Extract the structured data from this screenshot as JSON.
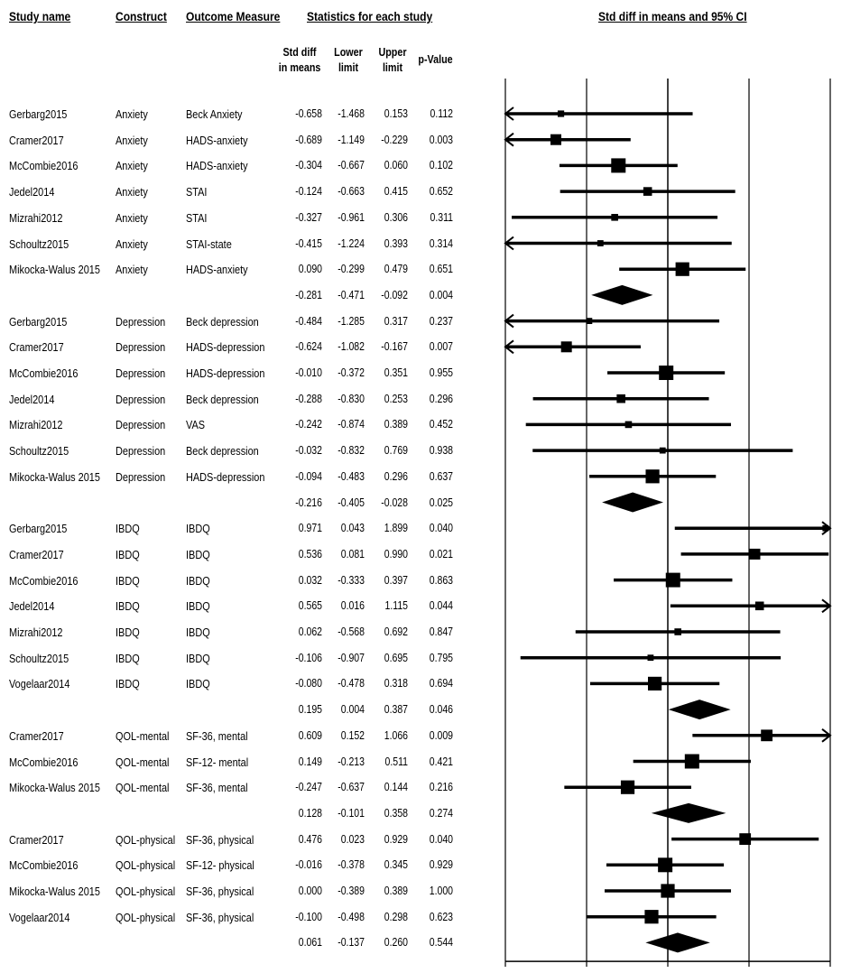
{
  "headers": {
    "study": "Study name",
    "construct": "Construct",
    "outcome": "Outcome Measure",
    "stats": "Statistics for each study",
    "plot": "Std diff in means and 95% CI",
    "std_diff": [
      "Std diff",
      "in means"
    ],
    "lower": [
      "Lower",
      "limit"
    ],
    "upper": [
      "Upper",
      "limit"
    ],
    "pvalue": "p-Value"
  },
  "rows": [
    {
      "study": "Gerbarg2015",
      "construct": "Anxiety",
      "outcome": "Beck Anxiety",
      "smd": "-0.658",
      "lower": "-1.468",
      "upper": "0.153",
      "p": "0.112"
    },
    {
      "study": "Cramer2017",
      "construct": "Anxiety",
      "outcome": "HADS-anxiety",
      "smd": "-0.689",
      "lower": "-1.149",
      "upper": "-0.229",
      "p": "0.003"
    },
    {
      "study": "McCombie2016",
      "construct": "Anxiety",
      "outcome": "HADS-anxiety",
      "smd": "-0.304",
      "lower": "-0.667",
      "upper": "0.060",
      "p": "0.102"
    },
    {
      "study": "Jedel2014",
      "construct": "Anxiety",
      "outcome": "STAI",
      "smd": "-0.124",
      "lower": "-0.663",
      "upper": "0.415",
      "p": "0.652"
    },
    {
      "study": "Mizrahi2012",
      "construct": "Anxiety",
      "outcome": "STAI",
      "smd": "-0.327",
      "lower": "-0.961",
      "upper": "0.306",
      "p": "0.311"
    },
    {
      "study": "Schoultz2015",
      "construct": "Anxiety",
      "outcome": "STAI-state",
      "smd": "-0.415",
      "lower": "-1.224",
      "upper": "0.393",
      "p": "0.314"
    },
    {
      "study": "Mikocka-Walus 2015",
      "construct": "Anxiety",
      "outcome": "HADS-anxiety",
      "smd": "0.090",
      "lower": "-0.299",
      "upper": "0.479",
      "p": "0.651"
    },
    {
      "study": "",
      "construct": "",
      "outcome": "",
      "smd": "-0.281",
      "lower": "-0.471",
      "upper": "-0.092",
      "p": "0.004",
      "summary": true
    },
    {
      "study": "Gerbarg2015",
      "construct": "Depression",
      "outcome": "Beck depression",
      "smd": "-0.484",
      "lower": "-1.285",
      "upper": "0.317",
      "p": "0.237"
    },
    {
      "study": "Cramer2017",
      "construct": "Depression",
      "outcome": "HADS-depression",
      "smd": "-0.624",
      "lower": "-1.082",
      "upper": "-0.167",
      "p": "0.007"
    },
    {
      "study": "McCombie2016",
      "construct": "Depression",
      "outcome": "HADS-depression",
      "smd": "-0.010",
      "lower": "-0.372",
      "upper": "0.351",
      "p": "0.955"
    },
    {
      "study": "Jedel2014",
      "construct": "Depression",
      "outcome": "Beck depression",
      "smd": "-0.288",
      "lower": "-0.830",
      "upper": "0.253",
      "p": "0.296"
    },
    {
      "study": "Mizrahi2012",
      "construct": "Depression",
      "outcome": "VAS",
      "smd": "-0.242",
      "lower": "-0.874",
      "upper": "0.389",
      "p": "0.452"
    },
    {
      "study": "Schoultz2015",
      "construct": "Depression",
      "outcome": "Beck depression",
      "smd": "-0.032",
      "lower": "-0.832",
      "upper": "0.769",
      "p": "0.938"
    },
    {
      "study": "Mikocka-Walus 2015",
      "construct": "Depression",
      "outcome": "HADS-depression",
      "smd": "-0.094",
      "lower": "-0.483",
      "upper": "0.296",
      "p": "0.637"
    },
    {
      "study": "",
      "construct": "",
      "outcome": "",
      "smd": "-0.216",
      "lower": "-0.405",
      "upper": "-0.028",
      "p": "0.025",
      "summary": true
    },
    {
      "study": "Gerbarg2015",
      "construct": "IBDQ",
      "outcome": "IBDQ",
      "smd": "0.971",
      "lower": "0.043",
      "upper": "1.899",
      "p": "0.040"
    },
    {
      "study": "Cramer2017",
      "construct": "IBDQ",
      "outcome": "IBDQ",
      "smd": "0.536",
      "lower": "0.081",
      "upper": "0.990",
      "p": "0.021"
    },
    {
      "study": "McCombie2016",
      "construct": "IBDQ",
      "outcome": "IBDQ",
      "smd": "0.032",
      "lower": "-0.333",
      "upper": "0.397",
      "p": "0.863"
    },
    {
      "study": "Jedel2014",
      "construct": "IBDQ",
      "outcome": "IBDQ",
      "smd": "0.565",
      "lower": "0.016",
      "upper": "1.115",
      "p": "0.044"
    },
    {
      "study": "Mizrahi2012",
      "construct": "IBDQ",
      "outcome": "IBDQ",
      "smd": "0.062",
      "lower": "-0.568",
      "upper": "0.692",
      "p": "0.847"
    },
    {
      "study": "Schoultz2015",
      "construct": "IBDQ",
      "outcome": "IBDQ",
      "smd": "-0.106",
      "lower": "-0.907",
      "upper": "0.695",
      "p": "0.795"
    },
    {
      "study": "Vogelaar2014",
      "construct": "IBDQ",
      "outcome": "IBDQ",
      "smd": "-0.080",
      "lower": "-0.478",
      "upper": "0.318",
      "p": "0.694"
    },
    {
      "study": "",
      "construct": "",
      "outcome": "",
      "smd": "0.195",
      "lower": "0.004",
      "upper": "0.387",
      "p": "0.046",
      "summary": true
    },
    {
      "study": "Cramer2017",
      "construct": "QOL-mental",
      "outcome": "SF-36, mental",
      "smd": "0.609",
      "lower": "0.152",
      "upper": "1.066",
      "p": "0.009"
    },
    {
      "study": "McCombie2016",
      "construct": "QOL-mental",
      "outcome": "SF-12- mental",
      "smd": "0.149",
      "lower": "-0.213",
      "upper": "0.511",
      "p": "0.421"
    },
    {
      "study": "Mikocka-Walus 2015",
      "construct": "QOL-mental",
      "outcome": "SF-36, mental",
      "smd": "-0.247",
      "lower": "-0.637",
      "upper": "0.144",
      "p": "0.216"
    },
    {
      "study": "",
      "construct": "",
      "outcome": "",
      "smd": "0.128",
      "lower": "-0.101",
      "upper": "0.358",
      "p": "0.274",
      "summary": true
    },
    {
      "study": "Cramer2017",
      "construct": "QOL-physical",
      "outcome": "SF-36, physical",
      "smd": "0.476",
      "lower": "0.023",
      "upper": "0.929",
      "p": "0.040"
    },
    {
      "study": "McCombie2016",
      "construct": "QOL-physical",
      "outcome": "SF-12- physical",
      "smd": "-0.016",
      "lower": "-0.378",
      "upper": "0.345",
      "p": "0.929"
    },
    {
      "study": "Mikocka-Walus 2015",
      "construct": "QOL-physical",
      "outcome": "SF-36, physical",
      "smd": "0.000",
      "lower": "-0.389",
      "upper": "0.389",
      "p": "1.000"
    },
    {
      "study": "Vogelaar2014",
      "construct": "QOL-physical",
      "outcome": "SF-36, physical",
      "smd": "-0.100",
      "lower": "-0.498",
      "upper": "0.298",
      "p": "0.623"
    },
    {
      "study": "",
      "construct": "",
      "outcome": "",
      "smd": "0.061",
      "lower": "-0.137",
      "upper": "0.260",
      "p": "0.544",
      "summary": true
    }
  ],
  "chart_data": {
    "type": "forest",
    "title": "Std diff in means and 95% CI",
    "xlim": [
      -1.0,
      1.0
    ],
    "xticks": [
      "-1.00",
      "-0.50",
      "0.00",
      "0.50",
      "1.00"
    ],
    "xtick_values": [
      -1.0,
      -0.5,
      0.0,
      0.5,
      1.0
    ],
    "weights": [
      0.4,
      1.0,
      1.5,
      0.7,
      0.45,
      0.35,
      1.4,
      0,
      0.35,
      1.0,
      1.5,
      0.7,
      0.45,
      0.35,
      1.4,
      0,
      0.35,
      1.0,
      1.5,
      0.7,
      0.45,
      0.35,
      1.4,
      0,
      1.1,
      1.5,
      1.4,
      0,
      1.1,
      1.5,
      1.4,
      1.4,
      0
    ],
    "point_shape": "square",
    "summary_shape": "diamond",
    "color": "#000000"
  }
}
